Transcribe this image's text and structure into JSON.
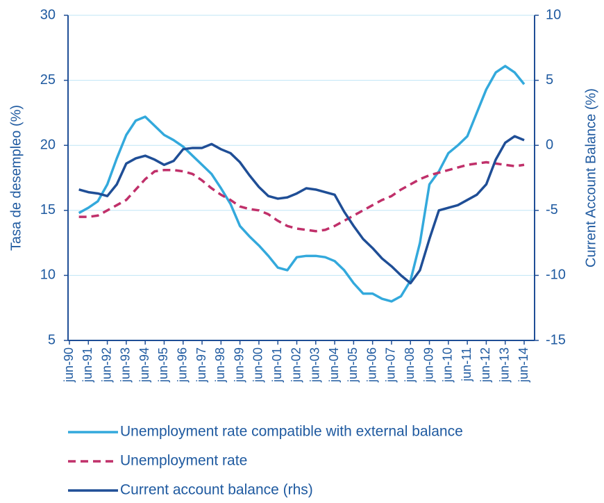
{
  "chart_data": {
    "type": "line",
    "ylabel": "Tasa de desempleo (%)",
    "y2label": "Current  Account Balance (%)",
    "categories": [
      "jun-90",
      null,
      "jun-91",
      null,
      "jun-92",
      null,
      "jun-93",
      null,
      "jun-94",
      null,
      "jun-95",
      null,
      "jun-96",
      null,
      "jun-97",
      null,
      "jun-98",
      null,
      "jun-99",
      null,
      "jun-00",
      null,
      "jun-01",
      null,
      "jun-02",
      null,
      "jun-03",
      null,
      "jun-04",
      null,
      "jun-05",
      null,
      "jun-06",
      null,
      "jun-07",
      null,
      "jun-08",
      null,
      "jun-09",
      null,
      "jun-10",
      null,
      "jun-11",
      null,
      "jun-12",
      null,
      "jun-13",
      null,
      "jun-14"
    ],
    "ylim": [
      5,
      30
    ],
    "yticks": [
      5,
      10,
      15,
      20,
      25,
      30
    ],
    "y2lim": [
      -15,
      10
    ],
    "y2ticks": [
      -15,
      -10,
      -5,
      0,
      5,
      10
    ],
    "grid": true,
    "legend": "bottom",
    "series": [
      {
        "name": "Unemployment rate compatible with external balance",
        "color": "#33a9dc",
        "line_style": "solid",
        "values": [
          null,
          14.8,
          15.2,
          15.7,
          17.0,
          19.0,
          20.8,
          21.9,
          22.2,
          21.5,
          20.8,
          20.4,
          19.9,
          19.2,
          18.5,
          17.8,
          16.7,
          15.5,
          13.8,
          13.0,
          12.3,
          11.5,
          10.6,
          10.4,
          11.4,
          11.5,
          11.5,
          11.4,
          11.1,
          10.4,
          9.4,
          8.6,
          8.6,
          8.2,
          8.0,
          8.4,
          9.6,
          12.5,
          17.0,
          18.0,
          19.4,
          20.0,
          20.7,
          22.5,
          24.3,
          25.6,
          26.1,
          25.6,
          24.7
        ]
      },
      {
        "name": "Unemployment rate",
        "color": "#c0306a",
        "line_style": "dashed",
        "values": [
          null,
          14.5,
          14.5,
          14.6,
          15.0,
          15.4,
          15.8,
          16.6,
          17.4,
          18.0,
          18.1,
          18.1,
          18.0,
          17.8,
          17.3,
          16.7,
          16.2,
          15.8,
          15.3,
          15.1,
          15.0,
          14.7,
          14.2,
          13.8,
          13.6,
          13.5,
          13.4,
          13.5,
          13.8,
          14.2,
          14.6,
          15.0,
          15.4,
          15.8,
          16.1,
          16.6,
          17.0,
          17.4,
          17.7,
          17.9,
          18.1,
          18.3,
          18.5,
          18.6,
          18.7,
          18.6,
          18.5,
          18.4,
          18.5
        ]
      },
      {
        "name": "Current account balance (rhs)",
        "color": "#1f4e96",
        "line_style": "solid",
        "axis": "y2",
        "values": [
          null,
          -3.4,
          -3.6,
          -3.7,
          -3.9,
          -3.0,
          -1.4,
          -1.0,
          -0.8,
          -1.1,
          -1.5,
          -1.2,
          -0.3,
          -0.2,
          -0.2,
          0.1,
          -0.3,
          -0.6,
          -1.3,
          -2.3,
          -3.2,
          -3.9,
          -4.1,
          -4.0,
          -3.7,
          -3.3,
          -3.4,
          -3.6,
          -3.8,
          -5.1,
          -6.2,
          -7.2,
          -7.9,
          -8.7,
          -9.3,
          -10.0,
          -10.6,
          -9.6,
          -7.2,
          -5.0,
          -4.8,
          -4.6,
          -4.2,
          -3.8,
          -3.0,
          -1.1,
          0.2,
          0.7,
          0.4
        ]
      }
    ]
  }
}
